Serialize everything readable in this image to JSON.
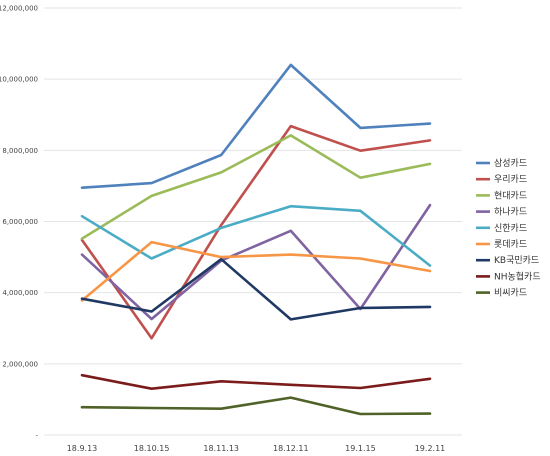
{
  "chart_data": {
    "type": "line",
    "categories": [
      "18.9.13",
      "18.10.15",
      "18.11.13",
      "18.12.11",
      "19.1.15",
      "19.2.11"
    ],
    "y_tick_labels": [
      "-",
      "2,000,000",
      "4,000,000",
      "6,000,000",
      "8,000,000",
      "10,000,000",
      "12,000,000"
    ],
    "y_tick_values": [
      0,
      2000000,
      4000000,
      6000000,
      8000000,
      10000000,
      12000000
    ],
    "ylim": [
      0,
      12000000
    ],
    "grid": true,
    "legend_position": "right",
    "series": [
      {
        "name": "삼성카드",
        "color": "#4F81BD",
        "values": [
          6950000,
          7080000,
          7870000,
          10400000,
          8630000,
          8750000
        ]
      },
      {
        "name": "우리카드",
        "color": "#C0504D",
        "values": [
          5480000,
          2720000,
          5900000,
          8680000,
          7990000,
          8280000
        ]
      },
      {
        "name": "현대카드",
        "color": "#9BBB59",
        "values": [
          5520000,
          6720000,
          7380000,
          8420000,
          7230000,
          7620000
        ]
      },
      {
        "name": "하나카드",
        "color": "#8064A2",
        "values": [
          5070000,
          3260000,
          4900000,
          5740000,
          3540000,
          6460000
        ]
      },
      {
        "name": "신한카드",
        "color": "#4BACC6",
        "values": [
          6150000,
          4960000,
          5820000,
          6430000,
          6300000,
          4760000
        ]
      },
      {
        "name": "롯데카드",
        "color": "#F79646",
        "values": [
          3780000,
          5420000,
          5000000,
          5070000,
          4960000,
          4610000
        ]
      },
      {
        "name": "KB국민카드",
        "color": "#1F3864",
        "values": [
          3830000,
          3470000,
          4940000,
          3250000,
          3570000,
          3600000
        ]
      },
      {
        "name": "NH농협카드",
        "color": "#7B1B1B",
        "values": [
          1680000,
          1300000,
          1510000,
          1410000,
          1320000,
          1580000
        ]
      },
      {
        "name": "비씨카드",
        "color": "#4F6228",
        "values": [
          780000,
          760000,
          740000,
          1050000,
          590000,
          600000
        ]
      }
    ]
  }
}
